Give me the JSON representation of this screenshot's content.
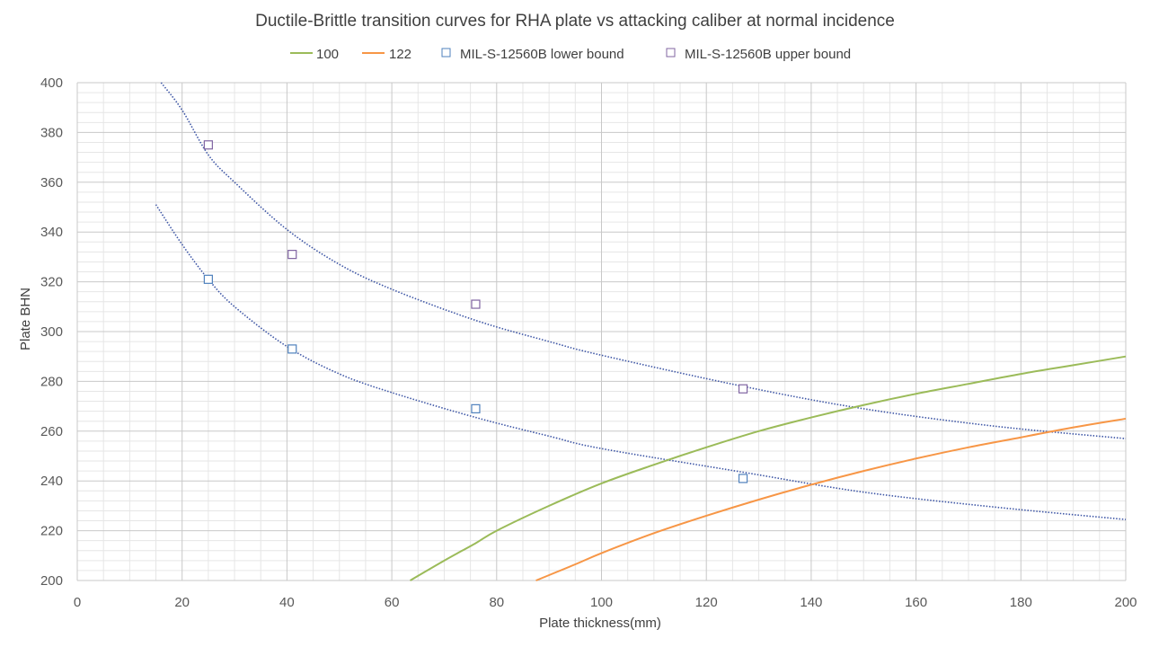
{
  "chart_data": {
    "type": "scatter",
    "title": "Ductile-Brittle transition curves for RHA plate vs attacking caliber at normal incidence",
    "xlabel": "Plate thickness(mm)",
    "ylabel": "Plate BHN",
    "xlim": [
      0,
      200
    ],
    "ylim": [
      200,
      400
    ],
    "x_ticks": [
      0,
      20,
      40,
      60,
      80,
      100,
      120,
      140,
      160,
      180,
      200
    ],
    "y_ticks": [
      200,
      220,
      240,
      260,
      280,
      300,
      320,
      340,
      360,
      380,
      400
    ],
    "grid": "major and minor",
    "legend_position": "top",
    "curves": [
      {
        "name": "100",
        "style": "line",
        "color": "#9BBB59",
        "points": [
          [
            63.5,
            200
          ],
          [
            70,
            208
          ],
          [
            76,
            215
          ],
          [
            80,
            220
          ],
          [
            90,
            230
          ],
          [
            100,
            239
          ],
          [
            110,
            246.5
          ],
          [
            120,
            253.5
          ],
          [
            130,
            260
          ],
          [
            140,
            265.5
          ],
          [
            150,
            270.5
          ],
          [
            160,
            275
          ],
          [
            170,
            279
          ],
          [
            180,
            283
          ],
          [
            190,
            286.5
          ],
          [
            200,
            290
          ]
        ]
      },
      {
        "name": "122",
        "style": "line",
        "color": "#F79646",
        "points": [
          [
            87.5,
            200
          ],
          [
            95,
            206.5
          ],
          [
            100,
            211
          ],
          [
            110,
            219
          ],
          [
            120,
            226
          ],
          [
            130,
            232.5
          ],
          [
            140,
            238.5
          ],
          [
            150,
            244
          ],
          [
            160,
            249
          ],
          [
            170,
            253.5
          ],
          [
            180,
            257.5
          ],
          [
            190,
            261.5
          ],
          [
            200,
            265
          ]
        ]
      }
    ],
    "series": [
      {
        "name": "MIL-S-12560B lower bound",
        "marker": "square",
        "color": "#4F81BD",
        "x": [
          25,
          41,
          76,
          127
        ],
        "y": [
          321,
          293,
          269,
          241
        ]
      },
      {
        "name": "MIL-S-12560B upper bound",
        "marker": "square",
        "color": "#8064A2",
        "x": [
          25,
          41,
          76,
          127
        ],
        "y": [
          375,
          331,
          311,
          277
        ]
      }
    ],
    "trendlines": [
      {
        "of": "MIL-S-12560B lower bound",
        "style": "dotted",
        "color": "#3F57A6",
        "points": [
          [
            15,
            351
          ],
          [
            20,
            335
          ],
          [
            25,
            321
          ],
          [
            30,
            310
          ],
          [
            40,
            294
          ],
          [
            50,
            283
          ],
          [
            60,
            275.5
          ],
          [
            76,
            265.5
          ],
          [
            90,
            258
          ],
          [
            100,
            253
          ],
          [
            127,
            243.5
          ],
          [
            150,
            235.5
          ],
          [
            175,
            229.5
          ],
          [
            200,
            224.5
          ]
        ]
      },
      {
        "of": "MIL-S-12560B upper bound",
        "style": "dotted",
        "color": "#3F57A6",
        "points": [
          [
            16,
            400
          ],
          [
            20,
            389
          ],
          [
            25,
            371
          ],
          [
            30,
            360
          ],
          [
            40,
            341
          ],
          [
            50,
            327
          ],
          [
            60,
            317
          ],
          [
            76,
            304.5
          ],
          [
            90,
            296
          ],
          [
            100,
            290.5
          ],
          [
            127,
            278
          ],
          [
            150,
            269
          ],
          [
            175,
            262
          ],
          [
            200,
            257
          ]
        ]
      }
    ]
  }
}
